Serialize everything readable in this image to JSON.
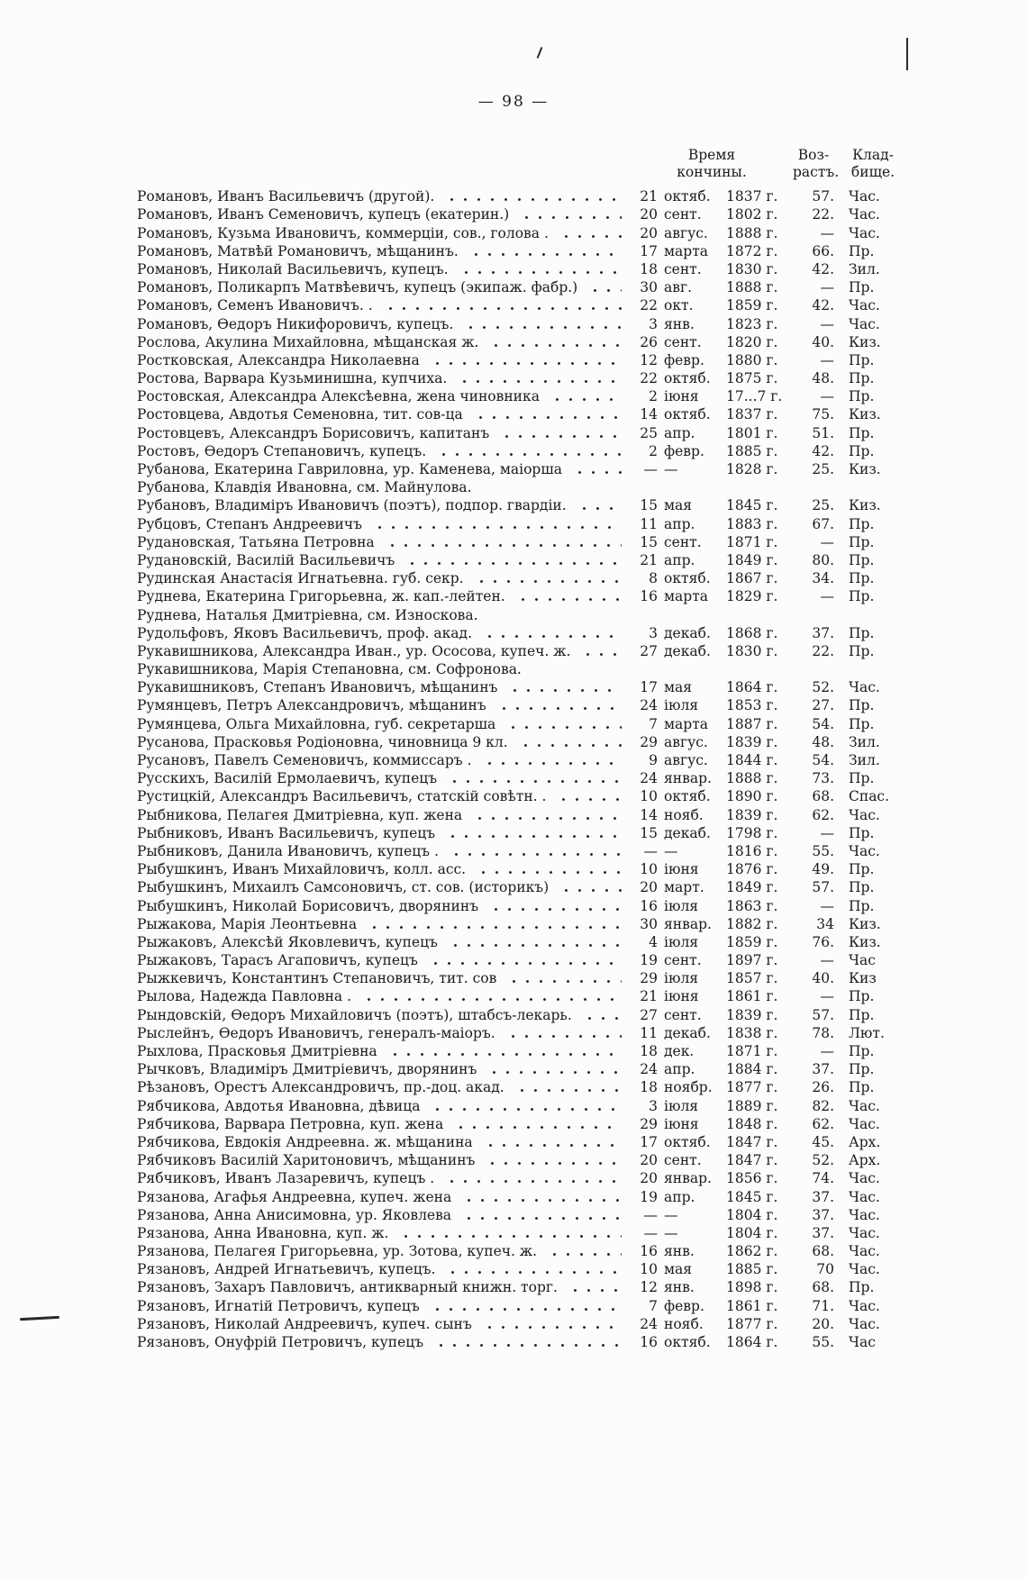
{
  "page": {
    "number": "— 98 —"
  },
  "table": {
    "headers": {
      "time": [
        "Время",
        "кончины."
      ],
      "age": [
        "Воз-",
        "растъ."
      ],
      "cemetery": [
        "Клад-",
        "бище."
      ]
    },
    "rows": [
      {
        "name": "Романовъ, Иванъ Васильевичъ (другой).",
        "day": "21",
        "month": "октяб.",
        "year": "1837 г.",
        "age": "57.",
        "cemetery": "Час."
      },
      {
        "name": "Романовъ, Иванъ Семеновичъ, купецъ (екатерин.)",
        "day": "20",
        "month": "сент.",
        "year": "1802 г.",
        "age": "22.",
        "cemetery": "Час."
      },
      {
        "name": "Романовъ, Кузьма Ивановичъ, коммерціи, сов., голова .",
        "day": "20",
        "month": "авгус.",
        "year": "1888 г.",
        "age": "—",
        "cemetery": "Час."
      },
      {
        "name": "Романовъ, Матвѣй Романовичъ, мѣщанинъ.",
        "day": "17",
        "month": "марта",
        "year": "1872 г.",
        "age": "66.",
        "cemetery": "Пр."
      },
      {
        "name": "Романовъ, Николай Васильевичъ, купецъ.",
        "day": "18",
        "month": "сент.",
        "year": "1830 г.",
        "age": "42.",
        "cemetery": "Зил."
      },
      {
        "name": "Романовъ, Поликарпъ Матвѣевичъ, купецъ (экипаж. фабр.)",
        "day": "30",
        "month": "авг.",
        "year": "1888 г.",
        "age": "—",
        "cemetery": "Пр."
      },
      {
        "name": "Романовъ, Семенъ Ивановичъ. .",
        "day": "22",
        "month": "окт.",
        "year": "1859 г.",
        "age": "42.",
        "cemetery": "Час."
      },
      {
        "name": "Романовъ, Ѳедоръ Никифоровичъ, купецъ.",
        "day": "3",
        "month": "янв.",
        "year": "1823 г.",
        "age": "—",
        "cemetery": "Час."
      },
      {
        "name": "Рослова, Акулина Михайловна, мѣщанская ж.",
        "day": "26",
        "month": "сент.",
        "year": "1820 г.",
        "age": "40.",
        "cemetery": "Киз."
      },
      {
        "name": "Ростковская, Александра Николаевна",
        "day": "12",
        "month": "февр.",
        "year": "1880 г.",
        "age": "—",
        "cemetery": "Пр."
      },
      {
        "name": "Ростова, Варвара Кузьминишна, купчиха.",
        "day": "22",
        "month": "октяб.",
        "year": "1875 г.",
        "age": "48.",
        "cemetery": "Пр."
      },
      {
        "name": "Ростовская, Александра Алексѣевна, жена чиновника",
        "day": "2",
        "month": "іюня",
        "year": "17...7 г.",
        "age": "—",
        "cemetery": "Пр."
      },
      {
        "name": "Ростовцева, Авдотья Семеновна, тит. сов-ца",
        "day": "14",
        "month": "октяб.",
        "year": "1837 г.",
        "age": "75.",
        "cemetery": "Киз."
      },
      {
        "name": "Ростовцевъ, Александръ Борисовичъ, капитанъ",
        "day": "25",
        "month": "апр.",
        "year": "1801 г.",
        "age": "51.",
        "cemetery": "Пр."
      },
      {
        "name": "Ростовъ, Ѳедоръ Степановичъ, купецъ.",
        "day": "2",
        "month": "февр.",
        "year": "1885 г.",
        "age": "42.",
        "cemetery": "Пр."
      },
      {
        "name": "Рубанова, Екатерина Гавриловна, ур. Каменева, маіорша",
        "day": "—",
        "month": "—",
        "year": "1828 г.",
        "age": "25.",
        "cemetery": "Киз."
      },
      {
        "name": "Рубанова, Клавдія Ивановна, см. Майнулова.",
        "day": "",
        "month": "",
        "year": "",
        "age": "",
        "cemetery": ""
      },
      {
        "name": "Рубановъ, Владиміръ Ивановичъ (поэтъ), подпор. гвардіи.",
        "day": "15",
        "month": "мая",
        "year": "1845 г.",
        "age": "25.",
        "cemetery": "Киз."
      },
      {
        "name": "Рубцовъ, Степанъ Андреевичъ",
        "day": "11",
        "month": "апр.",
        "year": "1883 г.",
        "age": "67.",
        "cemetery": "Пр."
      },
      {
        "name": "Рудановская, Татьяна Петровна",
        "day": "15",
        "month": "сент.",
        "year": "1871 г.",
        "age": "—",
        "cemetery": "Пр."
      },
      {
        "name": "Рудановскій, Василій Васильевичъ",
        "day": "21",
        "month": "апр.",
        "year": "1849 г.",
        "age": "80.",
        "cemetery": "Пр."
      },
      {
        "name": "Рудинская Анастасія Игнатьевна. губ. секр.",
        "day": "8",
        "month": "октяб.",
        "year": "1867 г.",
        "age": "34.",
        "cemetery": "Пр."
      },
      {
        "name": "Руднева, Екатерина Григорьевна, ж. кап.-лейтен.",
        "day": "16",
        "month": "марта",
        "year": "1829 г.",
        "age": "—",
        "cemetery": "Пр."
      },
      {
        "name": "Руднева, Наталья Дмитріевна, см. Износкова.",
        "day": "",
        "month": "",
        "year": "",
        "age": "",
        "cemetery": ""
      },
      {
        "name": "Рудольфовъ, Яковъ Васильевичъ, проф. акад.",
        "day": "3",
        "month": "декаб.",
        "year": "1868 г.",
        "age": "37.",
        "cemetery": "Пр."
      },
      {
        "name": "Рукавишникова, Александра Иван., ур. Ососова, купеч. ж.",
        "day": "27",
        "month": "декаб.",
        "year": "1830 г.",
        "age": "22.",
        "cemetery": "Пр."
      },
      {
        "name": "Рукавишникова, Марія Степановна, см. Софронова.",
        "day": "",
        "month": "",
        "year": "",
        "age": "",
        "cemetery": ""
      },
      {
        "name": "Рукавишниковъ, Степанъ Ивановичъ, мѣщанинъ",
        "day": "17",
        "month": "мая",
        "year": "1864 г.",
        "age": "52.",
        "cemetery": "Час."
      },
      {
        "name": "Румянцевъ, Петръ Александровичъ, мѣщанинъ",
        "day": "24",
        "month": "іюля",
        "year": "1853 г.",
        "age": "27.",
        "cemetery": "Пр."
      },
      {
        "name": "Румянцева, Ольга Михайловна, губ. секретарша",
        "day": "7",
        "month": "марта",
        "year": "1887 г.",
        "age": "54.",
        "cemetery": "Пр."
      },
      {
        "name": "Русанова, Прасковья Родіоновна, чиновница 9 кл.",
        "day": "29",
        "month": "авгус.",
        "year": "1839 г.",
        "age": "48.",
        "cemetery": "Зил."
      },
      {
        "name": "Русановъ, Павелъ Семеновичъ, коммиссаръ .",
        "day": "9",
        "month": "авгус.",
        "year": "1844 г.",
        "age": "54.",
        "cemetery": "Зил."
      },
      {
        "name": "Русскихъ, Василій Ермолаевичъ, купецъ",
        "day": "24",
        "month": "январ.",
        "year": "1888 г.",
        "age": "73.",
        "cemetery": "Пр."
      },
      {
        "name": "Рустицкій, Александръ Васильевичъ, статскій совѣтн. .",
        "day": "10",
        "month": "октяб.",
        "year": "1890 г.",
        "age": "68.",
        "cemetery": "Спас."
      },
      {
        "name": "Рыбникова, Пелагея Дмитріевна, куп. жена",
        "day": "14",
        "month": "нояб.",
        "year": "1839 г.",
        "age": "62.",
        "cemetery": "Час."
      },
      {
        "name": "Рыбниковъ, Иванъ Васильевичъ, купецъ",
        "day": "15",
        "month": "декаб.",
        "year": "1798 г.",
        "age": "—",
        "cemetery": "Пр."
      },
      {
        "name": "Рыбниковъ, Данила Ивановичъ, купецъ .",
        "day": "—",
        "month": "—",
        "year": "1816 г.",
        "age": "55.",
        "cemetery": "Час."
      },
      {
        "name": "Рыбушкинъ, Иванъ Михайловичъ, колл. асс.",
        "day": "10",
        "month": "іюня",
        "year": "1876 г.",
        "age": "49.",
        "cemetery": "Пр."
      },
      {
        "name": "Рыбушкинъ, Михаилъ Самсоновичъ, ст. сов. (историкъ)",
        "day": "20",
        "month": "март.",
        "year": "1849 г.",
        "age": "57.",
        "cemetery": "Пр."
      },
      {
        "name": "Рыбушкинъ, Николай Борисовичъ, дворянинъ",
        "day": "16",
        "month": "іюля",
        "year": "1863 г.",
        "age": "—",
        "cemetery": "Пр."
      },
      {
        "name": "Рыжакова, Марія Леонтьевна",
        "day": "30",
        "month": "январ.",
        "year": "1882 г.",
        "age": "34",
        "cemetery": "Киз."
      },
      {
        "name": "Рыжаковъ, Алексѣй Яковлевичъ, купецъ",
        "day": "4",
        "month": "іюля",
        "year": "1859 г.",
        "age": "76.",
        "cemetery": "Киз."
      },
      {
        "name": "Рыжаковъ, Тарасъ Агаповичъ, купецъ",
        "day": "19",
        "month": "сент.",
        "year": "1897 г.",
        "age": "—",
        "cemetery": "Час"
      },
      {
        "name": "Рыжкевичъ, Константинъ Степановичъ, тит. сов",
        "day": "29",
        "month": "іюля",
        "year": "1857 г.",
        "age": "40.",
        "cemetery": "Киз"
      },
      {
        "name": "Рылова, Надежда Павловна .",
        "day": "21",
        "month": "іюня",
        "year": "1861 г.",
        "age": "—",
        "cemetery": "Пр."
      },
      {
        "name": "Рындовскій, Ѳедоръ Михайловичъ (поэтъ), штабсъ-лекарь.",
        "day": "27",
        "month": "сент.",
        "year": "1839 г.",
        "age": "57.",
        "cemetery": "Пр."
      },
      {
        "name": "Рыслейнъ, Ѳедоръ Ивановичъ, генералъ-маіоръ.",
        "day": "11",
        "month": "декаб.",
        "year": "1838 г.",
        "age": "78.",
        "cemetery": "Лют."
      },
      {
        "name": "Рыхлова, Прасковья Дмитріевна",
        "day": "18",
        "month": "дек.",
        "year": "1871 г.",
        "age": "—",
        "cemetery": "Пр."
      },
      {
        "name": "Рычковъ, Владиміръ Дмитріевичъ, дворянинъ",
        "day": "24",
        "month": "апр.",
        "year": "1884 г.",
        "age": "37.",
        "cemetery": "Пр."
      },
      {
        "name": "Рѣзановъ, Орестъ Александровичъ, пр.-доц. акад.",
        "day": "18",
        "month": "ноябр.",
        "year": "1877 г.",
        "age": "26.",
        "cemetery": "Пр."
      },
      {
        "name": "Рябчикова, Авдотья Ивановна, дѣвица",
        "day": "3",
        "month": "іюля",
        "year": "1889 г.",
        "age": "82.",
        "cemetery": "Час."
      },
      {
        "name": "Рябчикова, Варвара Петровна, куп. жена",
        "day": "29",
        "month": "іюня",
        "year": "1848 г.",
        "age": "62.",
        "cemetery": "Час."
      },
      {
        "name": "Рябчикова, Евдокія Андреевна. ж. мѣщанина",
        "day": "17",
        "month": "октяб.",
        "year": "1847 г.",
        "age": "45.",
        "cemetery": "Арх."
      },
      {
        "name": "Рябчиковъ Василій Харитоновичъ, мѣщанинъ",
        "day": "20",
        "month": "сент.",
        "year": "1847 г.",
        "age": "52.",
        "cemetery": "Арх."
      },
      {
        "name": "Рябчиковъ, Иванъ Лазаревичъ, купецъ .",
        "day": "20",
        "month": "январ.",
        "year": "1856 г.",
        "age": "74.",
        "cemetery": "Час."
      },
      {
        "name": "Рязанова, Агафья Андреевна, купеч. жена",
        "day": "19",
        "month": "апр.",
        "year": "1845 г.",
        "age": "37.",
        "cemetery": "Час."
      },
      {
        "name": "Рязанова, Анна Анисимовна, ур. Яковлева",
        "day": "—",
        "month": "—",
        "year": "1804 г.",
        "age": "37.",
        "cemetery": "Час."
      },
      {
        "name": "Рязанова, Анна Ивановна, куп. ж.",
        "day": "—",
        "month": "—",
        "year": "1804 г.",
        "age": "37.",
        "cemetery": "Час."
      },
      {
        "name": "Рязанова, Пелагея Григорьевна, ур. Зотова, купеч. ж.",
        "day": "16",
        "month": "янв.",
        "year": "1862 г.",
        "age": "68.",
        "cemetery": "Час."
      },
      {
        "name": "Рязановъ, Андрей Игнатьевичъ, купецъ.",
        "day": "10",
        "month": "мая",
        "year": "1885 г.",
        "age": "70",
        "cemetery": "Час."
      },
      {
        "name": "Рязановъ, Захаръ Павловичъ, антикварный книжн. торг.",
        "day": "12",
        "month": "янв.",
        "year": "1898 г.",
        "age": "68.",
        "cemetery": "Пр."
      },
      {
        "name": "Рязановъ, Игнатій Петровичъ, купецъ",
        "day": "7",
        "month": "февр.",
        "year": "1861 г.",
        "age": "71.",
        "cemetery": "Час."
      },
      {
        "name": "Рязановъ, Николай Андреевичъ, купеч. сынъ",
        "day": "24",
        "month": "нояб.",
        "year": "1877 г.",
        "age": "20.",
        "cemetery": "Час."
      },
      {
        "name": "Рязановъ, Онуфрій Петровичъ, купецъ",
        "day": "16",
        "month": "октяб.",
        "year": "1864 г.",
        "age": "55.",
        "cemetery": "Час"
      }
    ]
  }
}
